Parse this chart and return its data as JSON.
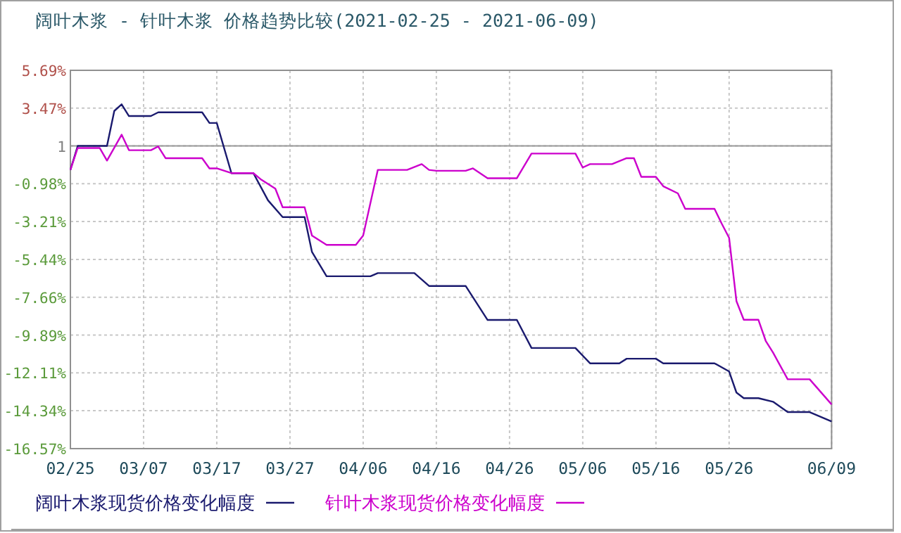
{
  "chart_data": {
    "type": "line",
    "title": "阔叶木浆 - 针叶木浆 价格趋势比较(2021-02-25 - 2021-06-09)",
    "xlim": [
      "2021-02-25",
      "2021-06-09"
    ],
    "xticks": [
      {
        "value": "2021-02-25",
        "label": "02/25"
      },
      {
        "value": "2021-03-07",
        "label": "03/07"
      },
      {
        "value": "2021-03-17",
        "label": "03/17"
      },
      {
        "value": "2021-03-27",
        "label": "03/27"
      },
      {
        "value": "2021-04-06",
        "label": "04/06"
      },
      {
        "value": "2021-04-16",
        "label": "04/16"
      },
      {
        "value": "2021-04-26",
        "label": "04/26"
      },
      {
        "value": "2021-05-06",
        "label": "05/06"
      },
      {
        "value": "2021-05-16",
        "label": "05/16"
      },
      {
        "value": "2021-05-26",
        "label": "05/26"
      },
      {
        "value": "2021-06-09",
        "label": "06/09"
      }
    ],
    "ylim": [
      -16.57,
      5.69
    ],
    "yticks": [
      {
        "value": 5.69,
        "label": "5.69%"
      },
      {
        "value": 3.47,
        "label": "3.47%"
      },
      {
        "value": 1.24,
        "label": "1"
      },
      {
        "value": -0.98,
        "label": "-0.98%"
      },
      {
        "value": -3.21,
        "label": "-3.21%"
      },
      {
        "value": -5.44,
        "label": "-5.44%"
      },
      {
        "value": -7.66,
        "label": "-7.66%"
      },
      {
        "value": -9.89,
        "label": "-9.89%"
      },
      {
        "value": -12.11,
        "label": "-12.11%"
      },
      {
        "value": -14.34,
        "label": "-14.34%"
      },
      {
        "value": -16.57,
        "label": "-16.57%"
      }
    ],
    "grid": true,
    "legend": "bottom",
    "ref_lines": [
      {
        "axis": "y",
        "value": 1.24,
        "color": "#999999",
        "line_style": "solid"
      }
    ],
    "series": [
      {
        "name": "阔叶木浆现货价格变化幅度",
        "color": "#1a1a6e",
        "x": [
          "2021-02-25",
          "2021-02-26",
          "2021-03-02",
          "2021-03-03",
          "2021-03-04",
          "2021-03-05",
          "2021-03-08",
          "2021-03-09",
          "2021-03-15",
          "2021-03-16",
          "2021-03-17",
          "2021-03-19",
          "2021-03-22",
          "2021-03-24",
          "2021-03-26",
          "2021-03-29",
          "2021-03-30",
          "2021-04-01",
          "2021-04-07",
          "2021-04-08",
          "2021-04-13",
          "2021-04-15",
          "2021-04-20",
          "2021-04-23",
          "2021-04-27",
          "2021-04-29",
          "2021-05-05",
          "2021-05-07",
          "2021-05-11",
          "2021-05-12",
          "2021-05-16",
          "2021-05-17",
          "2021-05-24",
          "2021-05-26",
          "2021-05-27",
          "2021-05-28",
          "2021-05-30",
          "2021-06-01",
          "2021-06-03",
          "2021-06-06",
          "2021-06-09"
        ],
        "values": [
          -0.17,
          1.24,
          1.24,
          3.3,
          3.69,
          3.0,
          3.0,
          3.22,
          3.22,
          2.59,
          2.59,
          -0.36,
          -0.36,
          -1.96,
          -2.95,
          -2.95,
          -4.99,
          -6.43,
          -6.43,
          -6.24,
          -6.24,
          -7.0,
          -7.0,
          -9.0,
          -9.0,
          -10.65,
          -10.65,
          -11.55,
          -11.55,
          -11.28,
          -11.28,
          -11.55,
          -11.55,
          -12.03,
          -13.27,
          -13.6,
          -13.6,
          -13.81,
          -14.42,
          -14.42,
          -14.97
        ]
      },
      {
        "name": "针叶木浆现货价格变化幅度",
        "color": "#cc00cc",
        "x": [
          "2021-02-25",
          "2021-02-26",
          "2021-03-01",
          "2021-03-02",
          "2021-03-04",
          "2021-03-05",
          "2021-03-08",
          "2021-03-09",
          "2021-03-10",
          "2021-03-15",
          "2021-03-16",
          "2021-03-17",
          "2021-03-19",
          "2021-03-22",
          "2021-03-23",
          "2021-03-25",
          "2021-03-26",
          "2021-03-29",
          "2021-03-30",
          "2021-04-01",
          "2021-04-05",
          "2021-04-06",
          "2021-04-08",
          "2021-04-12",
          "2021-04-14",
          "2021-04-15",
          "2021-04-16",
          "2021-04-20",
          "2021-04-21",
          "2021-04-23",
          "2021-04-27",
          "2021-04-29",
          "2021-05-05",
          "2021-05-06",
          "2021-05-07",
          "2021-05-10",
          "2021-05-12",
          "2021-05-13",
          "2021-05-14",
          "2021-05-16",
          "2021-05-17",
          "2021-05-19",
          "2021-05-20",
          "2021-05-24",
          "2021-05-25",
          "2021-05-26",
          "2021-05-27",
          "2021-05-28",
          "2021-05-30",
          "2021-05-31",
          "2021-06-01",
          "2021-06-03",
          "2021-06-06",
          "2021-06-09"
        ],
        "values": [
          -0.17,
          1.12,
          1.12,
          0.38,
          1.9,
          0.99,
          0.99,
          1.21,
          0.52,
          0.52,
          -0.08,
          -0.08,
          -0.36,
          -0.36,
          -0.72,
          -1.27,
          -2.37,
          -2.37,
          -4.03,
          -4.58,
          -4.58,
          -4.03,
          -0.17,
          -0.17,
          0.17,
          -0.17,
          -0.22,
          -0.22,
          -0.08,
          -0.66,
          -0.66,
          0.79,
          0.79,
          -0.03,
          0.17,
          0.17,
          0.52,
          0.52,
          -0.58,
          -0.58,
          -1.13,
          -1.55,
          -2.46,
          -2.46,
          -3.34,
          -4.17,
          -7.89,
          -8.99,
          -8.99,
          -10.23,
          -10.92,
          -12.49,
          -12.49,
          -13.97
        ]
      }
    ]
  }
}
